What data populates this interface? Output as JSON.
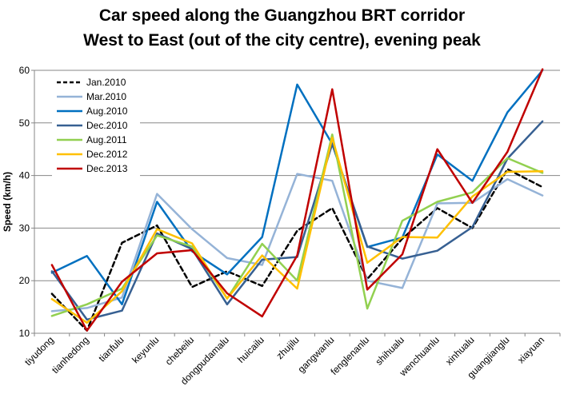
{
  "chart_data": {
    "type": "line",
    "title": "Car speed along the Guangzhou BRT corridor",
    "subtitle": "West to East (out of the city centre), evening peak",
    "xlabel": "",
    "ylabel": "Speed (km/h)",
    "ylim": [
      10,
      60
    ],
    "yticks": [
      10,
      20,
      30,
      40,
      50,
      60
    ],
    "grid": "horizontal",
    "legend_position": "top-left",
    "categories": [
      "tiyudong",
      "tianhedong",
      "tianfulu",
      "keyunlu",
      "chebeilu",
      "dongpudamalu",
      "huicailu",
      "zhujilu",
      "gangwanlu",
      "fenglenanlu",
      "shihualu",
      "wenchuanlu",
      "xinhualu",
      "guangjianglu",
      "xiayuan"
    ],
    "series": [
      {
        "name": "Jan.2010",
        "color": "#000000",
        "dash": true,
        "values": [
          17.5,
          10.5,
          27.2,
          30.5,
          18.8,
          21.8,
          19.0,
          29.5,
          33.8,
          20.3,
          28.0,
          33.8,
          30.0,
          41.2,
          37.8
        ]
      },
      {
        "name": "Mar.2010",
        "color": "#95b3d7",
        "dash": false,
        "values": [
          14.2,
          14.8,
          16.8,
          36.5,
          29.8,
          24.3,
          23.0,
          40.3,
          39.0,
          20.0,
          18.6,
          34.7,
          34.8,
          39.3,
          36.2
        ]
      },
      {
        "name": "Aug.2010",
        "color": "#0070c0",
        "dash": false,
        "values": [
          21.5,
          24.7,
          15.5,
          35.0,
          25.6,
          21.2,
          28.3,
          57.3,
          46.0,
          26.4,
          28.2,
          44.0,
          39.0,
          52.0,
          60.0
        ]
      },
      {
        "name": "Dec.2010",
        "color": "#376092",
        "dash": false,
        "values": [
          21.8,
          12.6,
          14.3,
          29.0,
          26.0,
          15.5,
          24.0,
          24.5,
          46.0,
          26.5,
          24.2,
          25.7,
          30.2,
          43.2,
          50.3
        ]
      },
      {
        "name": "Aug.2011",
        "color": "#92d050",
        "dash": false,
        "values": [
          13.3,
          15.5,
          18.5,
          28.6,
          26.5,
          16.6,
          27.0,
          20.0,
          47.8,
          14.7,
          31.4,
          35.0,
          36.8,
          43.3,
          40.5
        ]
      },
      {
        "name": "Dec.2012",
        "color": "#ffc000",
        "dash": false,
        "values": [
          16.5,
          12.0,
          18.0,
          29.8,
          27.1,
          16.6,
          24.8,
          18.5,
          47.2,
          23.4,
          28.3,
          28.2,
          36.0,
          40.7,
          40.8
        ]
      },
      {
        "name": "Dec.2013",
        "color": "#c00000",
        "dash": false,
        "values": [
          23.0,
          10.5,
          19.8,
          25.2,
          25.8,
          17.6,
          13.2,
          24.8,
          56.4,
          18.3,
          25.0,
          45.0,
          34.8,
          44.5,
          60.2
        ]
      }
    ]
  }
}
